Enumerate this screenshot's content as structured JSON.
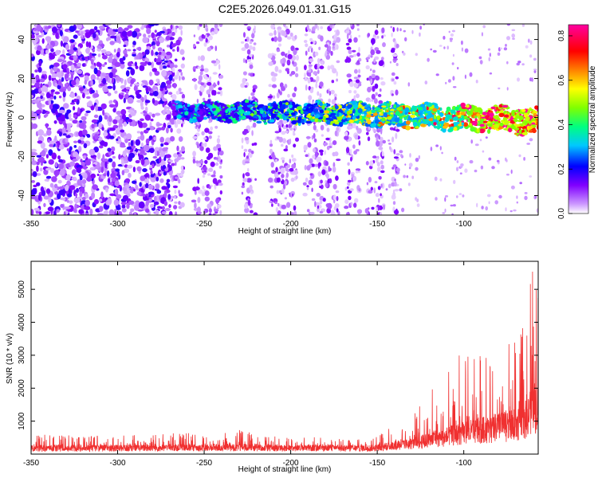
{
  "title": "C2E5.2026.049.01.31.G15",
  "chart_data": [
    {
      "type": "heatmap",
      "xlabel": "Height of straight line (km)",
      "ylabel": "Frequency (Hz)",
      "xlim": [
        -350,
        -57
      ],
      "ylim": [
        -50,
        48
      ],
      "x_ticks": [
        -350,
        -300,
        -250,
        -200,
        -150,
        -100
      ],
      "y_ticks": [
        -40,
        -20,
        0,
        20,
        40
      ],
      "x_tick_labels": [
        "-350",
        "-300",
        "-250",
        "-200",
        "-150",
        "-100"
      ],
      "y_tick_labels": [
        "-40",
        "-20",
        "0",
        "20",
        "40"
      ],
      "colorbar": {
        "label": "Normalized spectral amplitude",
        "range": [
          0.0,
          0.85
        ],
        "ticks": [
          0.0,
          0.2,
          0.4,
          0.6,
          0.8
        ],
        "tick_labels": [
          "0.0",
          "0.2",
          "0.4",
          "0.6",
          "0.8"
        ],
        "colors": [
          "#ffffff",
          "#cc99ff",
          "#8000ff",
          "#0000ff",
          "#00c8ff",
          "#00ff80",
          "#80ff00",
          "#ffff00",
          "#ff8000",
          "#ff0000",
          "#ff00a0"
        ]
      },
      "features": {
        "noise_region_km": [
          -350,
          -268
        ],
        "stripe_regions_km": [
          [
            -268,
            -145
          ]
        ],
        "signal_band_start_km": -268,
        "signal_band_center_hz": 3,
        "signal_band_width_hz": 8,
        "signal_band_end_center_hz": -2,
        "peak_amplitude": 0.84
      }
    },
    {
      "type": "line",
      "xlabel": "Height of straight line (km)",
      "ylabel": "SNR (10 * v/v)",
      "xlim": [
        -350,
        -57
      ],
      "ylim": [
        0,
        5850
      ],
      "x_ticks": [
        -350,
        -300,
        -250,
        -200,
        -150,
        -100
      ],
      "y_ticks": [
        1000,
        2000,
        3000,
        4000,
        5000
      ],
      "x_tick_labels": [
        "-350",
        "-300",
        "-250",
        "-200",
        "-150",
        "-100"
      ],
      "y_tick_labels": [
        "1000",
        "2000",
        "3000",
        "4000",
        "5000"
      ],
      "series": [
        {
          "name": "SNR",
          "color": "#f03030",
          "envelope": {
            "x": [
              -350,
              -300,
              -260,
              -250,
              -240,
              -230,
              -220,
              -210,
              -200,
              -190,
              -180,
              -170,
              -160,
              -150,
              -140,
              -130,
              -120,
              -110,
              -100,
              -95,
              -90,
              -85,
              -80,
              -75,
              -70,
              -65,
              -62,
              -60,
              -57
            ],
            "base": [
              220,
              230,
              240,
              230,
              230,
              260,
              240,
              230,
              220,
              230,
              230,
              220,
              220,
              240,
              320,
              400,
              520,
              650,
              800,
              850,
              900,
              950,
              1000,
              1050,
              1100,
              1250,
              1500,
              1800,
              1600
            ],
            "peak": [
              600,
              560,
              650,
              560,
              620,
              800,
              580,
              560,
              480,
              560,
              520,
              450,
              450,
              550,
              900,
              1200,
              2000,
              2600,
              3300,
              2900,
              3200,
              3000,
              3400,
              3300,
              3500,
              3900,
              5000,
              5800,
              5000
            ]
          }
        }
      ]
    }
  ]
}
